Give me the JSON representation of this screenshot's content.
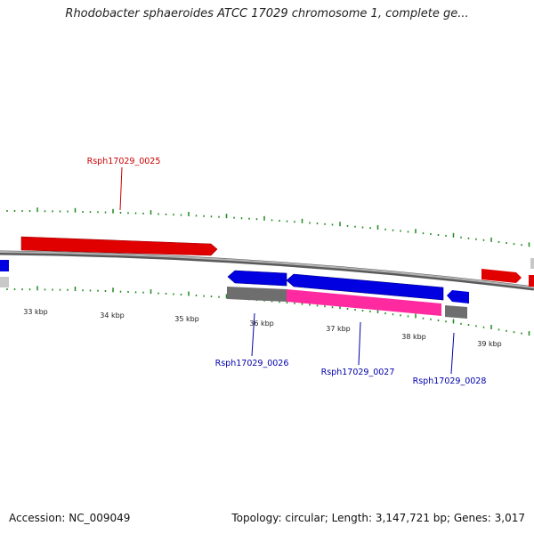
{
  "title": "Rhodobacter sphaeroides ATCC 17029 chromosome 1, complete ge...",
  "footer": {
    "accession": "Accession: NC_009049",
    "summary": "Topology: circular; Length: 3,147,721 bp; Genes: 3,017"
  },
  "colors": {
    "forward_gene": "#e00000",
    "reverse_gene": "#0000e0",
    "rna_gene": "#ff2aa0",
    "other_feature": "#6e6e6e",
    "light_feature": "#c8c8c8",
    "backbone": "#8a8a8a",
    "ticks": "#1d8a1d",
    "label_red": "#cc0000",
    "label_blue": "#0000aa"
  },
  "scale_labels": [
    "33 kbp",
    "34 kbp",
    "35 kbp",
    "36 kbp",
    "37 kbp",
    "38 kbp",
    "39 kbp"
  ],
  "gene_labels": [
    {
      "name": "Rsph17029_0025",
      "color": "red"
    },
    {
      "name": "Rsph17029_0026",
      "color": "blue"
    },
    {
      "name": "Rsph17029_0027",
      "color": "blue"
    },
    {
      "name": "Rsph17029_0028",
      "color": "blue"
    }
  ]
}
